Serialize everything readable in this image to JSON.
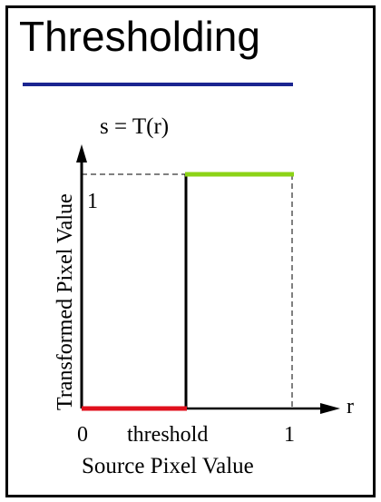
{
  "slide": {
    "title": "Thresholding",
    "accent_color": "#1b2590"
  },
  "diagram": {
    "function_label": "s = T(r)",
    "y_axis_label": "Transformed Pixel Value",
    "x_axis_label": "Source Pixel Value",
    "x_axis_var": "r",
    "y_tick_one": "1",
    "x_tick_zero": "0",
    "x_tick_threshold": "threshold",
    "x_tick_one": "1",
    "low_segment_color": "#e0101c",
    "high_segment_color": "#8cd317"
  }
}
